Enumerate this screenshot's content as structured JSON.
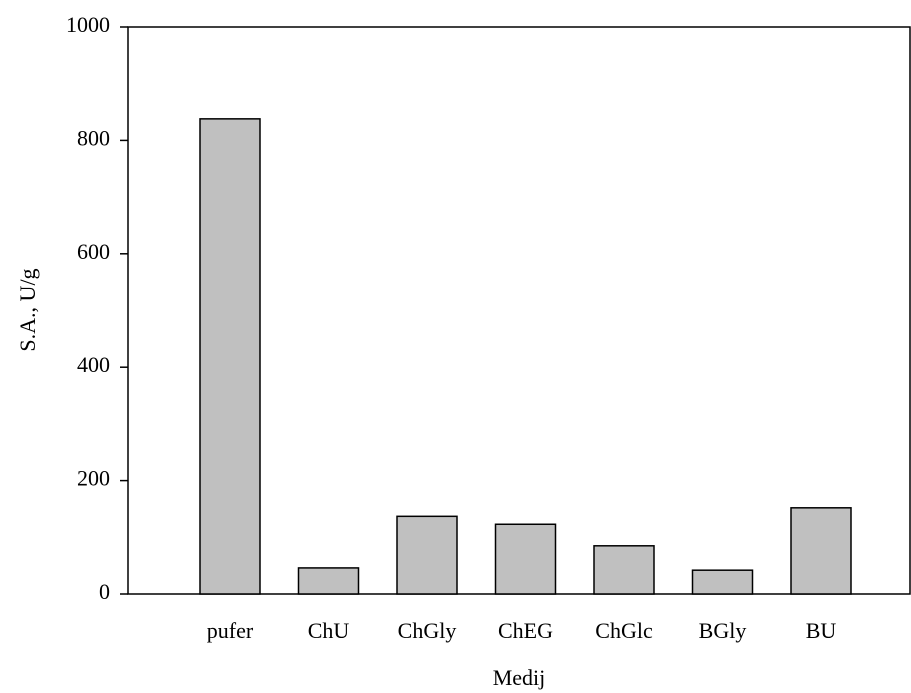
{
  "chart_data": {
    "type": "bar",
    "xlabel": "Medij",
    "ylabel": "S.A., U/g",
    "categories": [
      "pufer",
      "ChU",
      "ChGly",
      "ChEG",
      "ChGlc",
      "BGly",
      "BU"
    ],
    "values": [
      838,
      46,
      137,
      123,
      85,
      42,
      152
    ],
    "color": "#c0c0c0",
    "ylim": [
      0,
      1000
    ],
    "yticks": [
      0,
      200,
      400,
      600,
      800,
      1000
    ]
  }
}
